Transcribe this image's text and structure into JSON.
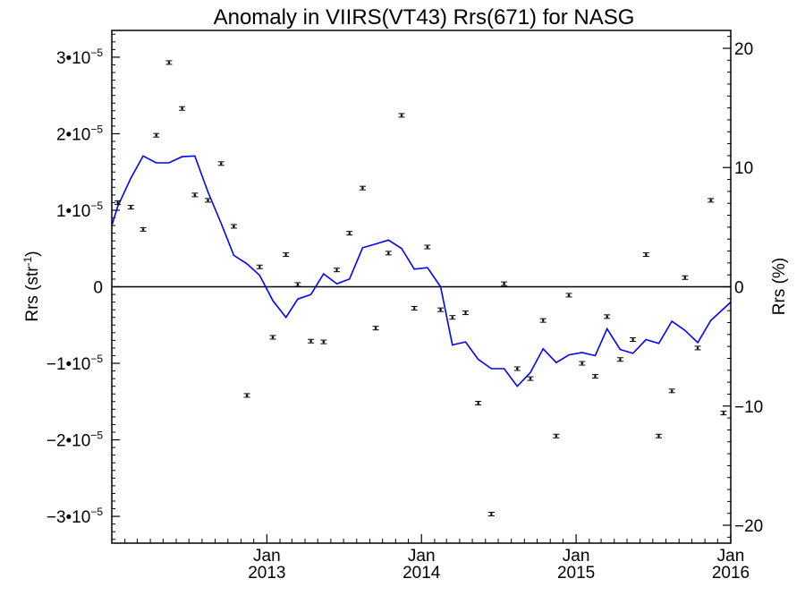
{
  "chart_data": {
    "type": "scatter",
    "title": "Anomaly in VIIRS(VT43) Rrs(671) for NASG",
    "ylabel_left": "Rrs (str",
    "ylabel_left_sup": "-1",
    "ylabel_left_end": ")",
    "ylabel_right": "Rrs (%)",
    "xlim": [
      "2012-01-01",
      "2016-01-01"
    ],
    "ylim_left": [
      -3.35e-05,
      3.35e-05
    ],
    "ylim_right": [
      -21.5,
      21.5
    ],
    "left_ticks": [
      {
        "value": 3e-05,
        "mant": "3•10",
        "exp": "−5"
      },
      {
        "value": 2e-05,
        "mant": "2•10",
        "exp": "−5"
      },
      {
        "value": 1e-05,
        "mant": "1•10",
        "exp": "−5"
      },
      {
        "value": 0,
        "mant": "0",
        "exp": ""
      },
      {
        "value": -1e-05,
        "mant": "−1•10",
        "exp": "−5"
      },
      {
        "value": -2e-05,
        "mant": "−2•10",
        "exp": "−5"
      },
      {
        "value": -3e-05,
        "mant": "−3•10",
        "exp": "−5"
      }
    ],
    "right_ticks": [
      {
        "value": 20,
        "label": "20"
      },
      {
        "value": 10,
        "label": "10"
      },
      {
        "value": 0,
        "label": "0"
      },
      {
        "value": -10,
        "label": "−10"
      },
      {
        "value": -20,
        "label": "−20"
      }
    ],
    "x_ticks": [
      {
        "date": "2013-01-01",
        "month": "Jan",
        "year": "2013"
      },
      {
        "date": "2014-01-01",
        "month": "Jan",
        "year": "2014"
      },
      {
        "date": "2015-01-01",
        "month": "Jan",
        "year": "2015"
      },
      {
        "date": "2016-01-01",
        "month": "Jan",
        "year": "2016"
      }
    ],
    "zero_line": true,
    "colors": {
      "points": "#000000",
      "line": "#0000ff"
    },
    "series": [
      {
        "type": "scatter_errorbar",
        "points": [
          {
            "x": "2012-01-15",
            "y": 1.1e-05
          },
          {
            "x": "2012-02-15",
            "y": 1.04e-05
          },
          {
            "x": "2012-03-15",
            "y": 7.5e-06
          },
          {
            "x": "2012-04-15",
            "y": 1.98e-05
          },
          {
            "x": "2012-05-15",
            "y": 2.93e-05
          },
          {
            "x": "2012-06-15",
            "y": 2.33e-05
          },
          {
            "x": "2012-07-15",
            "y": 1.2e-05
          },
          {
            "x": "2012-08-15",
            "y": 1.13e-05
          },
          {
            "x": "2012-09-15",
            "y": 1.61e-05
          },
          {
            "x": "2012-10-15",
            "y": 7.9e-06
          },
          {
            "x": "2012-11-15",
            "y": -1.42e-05
          },
          {
            "x": "2012-12-15",
            "y": 2.6e-06
          },
          {
            "x": "2013-01-15",
            "y": -6.6e-06
          },
          {
            "x": "2013-02-15",
            "y": 4.2e-06
          },
          {
            "x": "2013-03-15",
            "y": 3e-07
          },
          {
            "x": "2013-04-15",
            "y": -7.1e-06
          },
          {
            "x": "2013-05-15",
            "y": -7.2e-06
          },
          {
            "x": "2013-06-15",
            "y": 2.2e-06
          },
          {
            "x": "2013-07-15",
            "y": 7e-06
          },
          {
            "x": "2013-08-15",
            "y": 1.29e-05
          },
          {
            "x": "2013-09-15",
            "y": -5.4e-06
          },
          {
            "x": "2013-10-15",
            "y": 4.4e-06
          },
          {
            "x": "2013-11-15",
            "y": 2.24e-05
          },
          {
            "x": "2013-12-15",
            "y": -2.8e-06
          },
          {
            "x": "2014-01-15",
            "y": 5.2e-06
          },
          {
            "x": "2014-02-15",
            "y": -3e-06
          },
          {
            "x": "2014-03-15",
            "y": -4e-06
          },
          {
            "x": "2014-04-15",
            "y": -3.4e-06
          },
          {
            "x": "2014-05-15",
            "y": -1.52e-05
          },
          {
            "x": "2014-06-15",
            "y": -2.97e-05
          },
          {
            "x": "2014-07-15",
            "y": 4e-07
          },
          {
            "x": "2014-08-15",
            "y": -1.07e-05
          },
          {
            "x": "2014-09-15",
            "y": -1.2e-05
          },
          {
            "x": "2014-10-15",
            "y": -4.4e-06
          },
          {
            "x": "2014-11-15",
            "y": -1.95e-05
          },
          {
            "x": "2014-12-15",
            "y": -1.1e-06
          },
          {
            "x": "2015-01-15",
            "y": -1e-05
          },
          {
            "x": "2015-02-15",
            "y": -1.17e-05
          },
          {
            "x": "2015-03-15",
            "y": -3.9e-06
          },
          {
            "x": "2015-04-15",
            "y": -9.5e-06
          },
          {
            "x": "2015-05-15",
            "y": -6.9e-06
          },
          {
            "x": "2015-06-15",
            "y": 4.2e-06
          },
          {
            "x": "2015-07-15",
            "y": -1.95e-05
          },
          {
            "x": "2015-08-15",
            "y": -1.36e-05
          },
          {
            "x": "2015-09-15",
            "y": 1.2e-06
          },
          {
            "x": "2015-10-15",
            "y": -8e-06
          },
          {
            "x": "2015-11-15",
            "y": 1.13e-05
          },
          {
            "x": "2015-12-15",
            "y": -1.65e-05
          }
        ]
      },
      {
        "type": "line",
        "points": [
          {
            "x": "2012-01-01",
            "y": 8e-06
          },
          {
            "x": "2012-01-15",
            "y": 1.05e-05
          },
          {
            "x": "2012-02-15",
            "y": 1.42e-05
          },
          {
            "x": "2012-03-15",
            "y": 1.71e-05
          },
          {
            "x": "2012-04-15",
            "y": 1.62e-05
          },
          {
            "x": "2012-05-15",
            "y": 1.62e-05
          },
          {
            "x": "2012-06-15",
            "y": 1.7e-05
          },
          {
            "x": "2012-07-15",
            "y": 1.71e-05
          },
          {
            "x": "2012-08-15",
            "y": 1.24e-05
          },
          {
            "x": "2012-09-15",
            "y": 8.3e-06
          },
          {
            "x": "2012-10-15",
            "y": 4.1e-06
          },
          {
            "x": "2012-11-15",
            "y": 3e-06
          },
          {
            "x": "2012-12-15",
            "y": 1.5e-06
          },
          {
            "x": "2013-01-15",
            "y": -1.8e-06
          },
          {
            "x": "2013-02-15",
            "y": -4e-06
          },
          {
            "x": "2013-03-15",
            "y": -1.6e-06
          },
          {
            "x": "2013-04-15",
            "y": -1e-06
          },
          {
            "x": "2013-05-15",
            "y": 1.7e-06
          },
          {
            "x": "2013-06-15",
            "y": 4e-07
          },
          {
            "x": "2013-07-15",
            "y": 1e-06
          },
          {
            "x": "2013-08-15",
            "y": 5.1e-06
          },
          {
            "x": "2013-09-15",
            "y": 5.6e-06
          },
          {
            "x": "2013-10-15",
            "y": 6.1e-06
          },
          {
            "x": "2013-11-15",
            "y": 5e-06
          },
          {
            "x": "2013-12-15",
            "y": 2.3e-06
          },
          {
            "x": "2014-01-15",
            "y": 2.5e-06
          },
          {
            "x": "2014-02-15",
            "y": 0.0
          },
          {
            "x": "2014-03-15",
            "y": -7.6e-06
          },
          {
            "x": "2014-04-15",
            "y": -7.2e-06
          },
          {
            "x": "2014-05-15",
            "y": -9.5e-06
          },
          {
            "x": "2014-06-15",
            "y": -1.07e-05
          },
          {
            "x": "2014-07-15",
            "y": -1.07e-05
          },
          {
            "x": "2014-08-15",
            "y": -1.3e-05
          },
          {
            "x": "2014-09-15",
            "y": -1.12e-05
          },
          {
            "x": "2014-10-15",
            "y": -8.1e-06
          },
          {
            "x": "2014-11-15",
            "y": -9.9e-06
          },
          {
            "x": "2014-12-15",
            "y": -8.9e-06
          },
          {
            "x": "2015-01-15",
            "y": -8.6e-06
          },
          {
            "x": "2015-02-15",
            "y": -9e-06
          },
          {
            "x": "2015-03-15",
            "y": -5.5e-06
          },
          {
            "x": "2015-04-15",
            "y": -8.2e-06
          },
          {
            "x": "2015-05-15",
            "y": -8.7e-06
          },
          {
            "x": "2015-06-15",
            "y": -6.9e-06
          },
          {
            "x": "2015-07-15",
            "y": -7.4e-06
          },
          {
            "x": "2015-08-15",
            "y": -4.5e-06
          },
          {
            "x": "2015-09-15",
            "y": -5.7e-06
          },
          {
            "x": "2015-10-15",
            "y": -7.3e-06
          },
          {
            "x": "2015-11-15",
            "y": -4.4e-06
          },
          {
            "x": "2016-01-01",
            "y": -2e-06
          }
        ]
      }
    ]
  }
}
